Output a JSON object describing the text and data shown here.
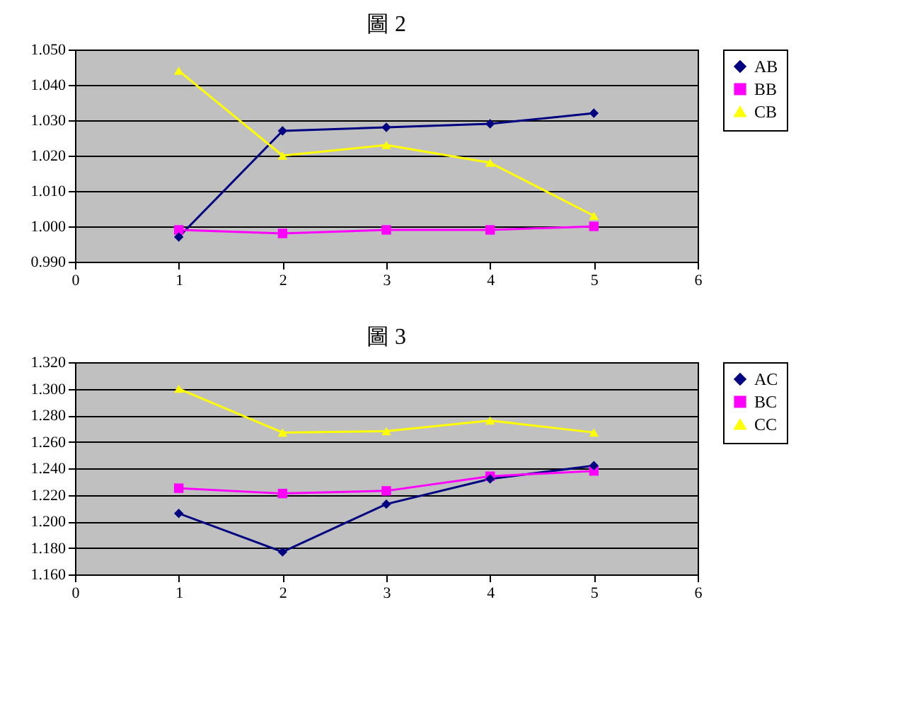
{
  "chart_data": [
    {
      "type": "line",
      "title": "圖 2",
      "x": [
        1,
        2,
        3,
        4,
        5
      ],
      "xlim": [
        0,
        6
      ],
      "xticks": [
        0,
        1,
        2,
        3,
        4,
        5,
        6
      ],
      "ylim": [
        0.99,
        1.05
      ],
      "yticks": [
        {
          "value": 0.99,
          "label": "0.990"
        },
        {
          "value": 1.0,
          "label": "1.000"
        },
        {
          "value": 1.01,
          "label": "1.010"
        },
        {
          "value": 1.02,
          "label": "1.020"
        },
        {
          "value": 1.03,
          "label": "1.030"
        },
        {
          "value": 1.04,
          "label": "1.040"
        },
        {
          "value": 1.05,
          "label": "1.050"
        }
      ],
      "grid": "y",
      "legend": "right",
      "line_style": "solid",
      "series": [
        {
          "name": "AB",
          "color": "#000080",
          "marker": "diamond",
          "values": [
            0.997,
            1.027,
            1.028,
            1.029,
            1.032
          ]
        },
        {
          "name": "BB",
          "color": "#ff00ff",
          "marker": "square",
          "values": [
            0.999,
            0.998,
            0.999,
            0.999,
            1.0
          ]
        },
        {
          "name": "CB",
          "color": "#ffff00",
          "marker": "triangle",
          "values": [
            1.044,
            1.02,
            1.023,
            1.018,
            1.003
          ]
        }
      ]
    },
    {
      "type": "line",
      "title": "圖 3",
      "x": [
        1,
        2,
        3,
        4,
        5
      ],
      "xlim": [
        0,
        6
      ],
      "xticks": [
        0,
        1,
        2,
        3,
        4,
        5,
        6
      ],
      "ylim": [
        1.16,
        1.32
      ],
      "yticks": [
        {
          "value": 1.16,
          "label": "1.160"
        },
        {
          "value": 1.18,
          "label": "1.180"
        },
        {
          "value": 1.2,
          "label": "1.200"
        },
        {
          "value": 1.22,
          "label": "1.220"
        },
        {
          "value": 1.24,
          "label": "1.240"
        },
        {
          "value": 1.26,
          "label": "1.260"
        },
        {
          "value": 1.28,
          "label": "1.280"
        },
        {
          "value": 1.3,
          "label": "1.300"
        },
        {
          "value": 1.32,
          "label": "1.320"
        }
      ],
      "grid": "y",
      "legend": "right",
      "line_style": "solid",
      "series": [
        {
          "name": "AC",
          "color": "#000080",
          "marker": "diamond",
          "values": [
            1.206,
            1.177,
            1.213,
            1.232,
            1.242
          ]
        },
        {
          "name": "BC",
          "color": "#ff00ff",
          "marker": "square",
          "values": [
            1.225,
            1.221,
            1.223,
            1.234,
            1.238
          ]
        },
        {
          "name": "CC",
          "color": "#ffff00",
          "marker": "triangle",
          "values": [
            1.3,
            1.267,
            1.268,
            1.276,
            1.267
          ]
        }
      ]
    }
  ]
}
